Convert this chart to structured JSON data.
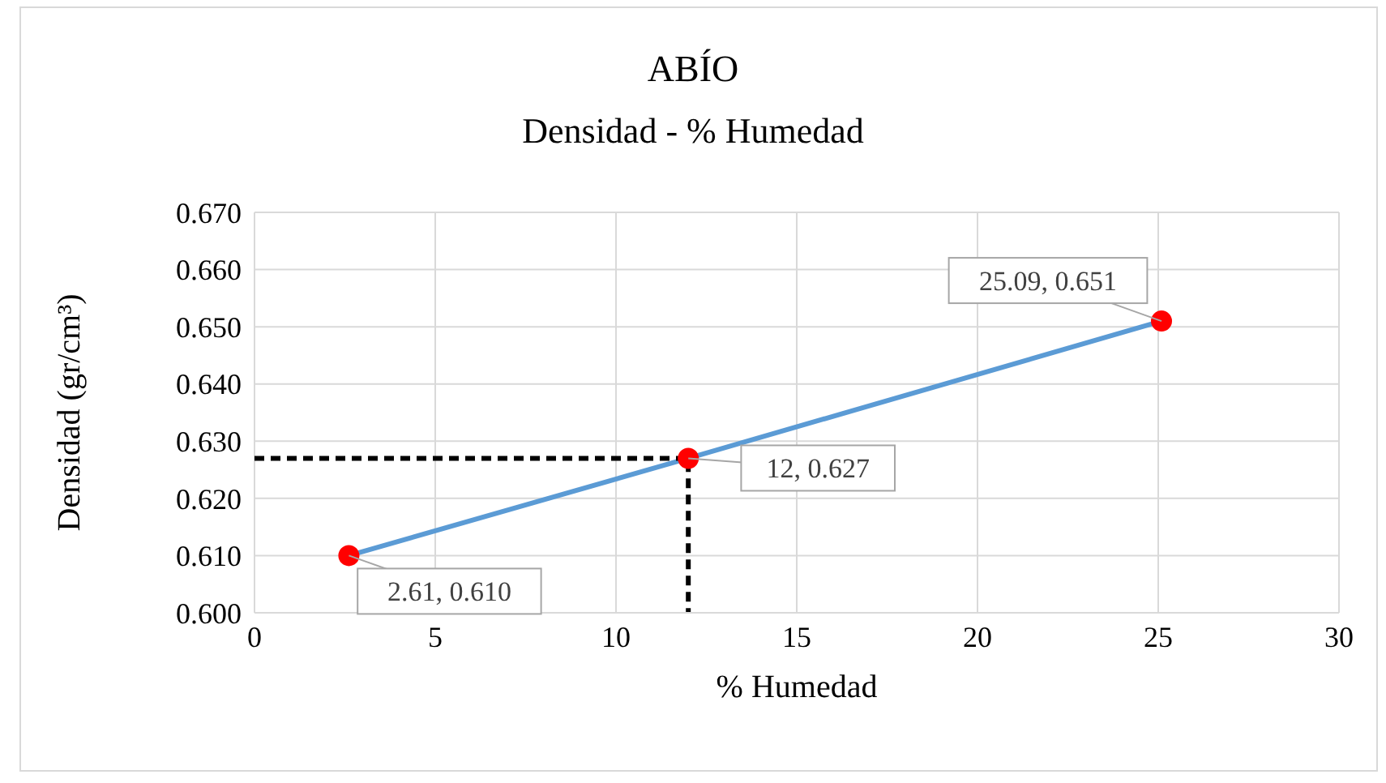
{
  "chart_data": {
    "type": "line",
    "title": "ABÍO",
    "subtitle": "Densidad - % Humedad",
    "xlabel": "% Humedad",
    "ylabel": "Densidad (gr/cm³)",
    "xlim": [
      0,
      30
    ],
    "xticks": [
      0,
      5,
      10,
      15,
      20,
      25,
      30
    ],
    "ylim": [
      0.6,
      0.67
    ],
    "yticks": [
      {
        "value": 0.6,
        "label": "0.600"
      },
      {
        "value": 0.61,
        "label": "0.610"
      },
      {
        "value": 0.62,
        "label": "0.620"
      },
      {
        "value": 0.63,
        "label": "0.630"
      },
      {
        "value": 0.64,
        "label": "0.640"
      },
      {
        "value": 0.65,
        "label": "0.650"
      },
      {
        "value": 0.66,
        "label": "0.660"
      },
      {
        "value": 0.67,
        "label": "0.670"
      }
    ],
    "grid": true,
    "legend": false,
    "series": [
      {
        "color": "#5b9bd5",
        "marker": "circle",
        "line_style": "solid",
        "x": [
          2.61,
          12,
          25.09
        ],
        "values": [
          0.61,
          0.627,
          0.651
        ]
      },
      {
        "color": "#000000",
        "marker": "none",
        "line_style": "dashed",
        "x": [
          0,
          12,
          12
        ],
        "values": [
          0.627,
          0.627,
          0.6
        ]
      }
    ],
    "annotations": [
      {
        "text": "2.61, 0.610",
        "x": 2.61,
        "y": 0.61
      },
      {
        "text": "12, 0.627",
        "x": 12,
        "y": 0.627
      },
      {
        "text": "25.09, 0.651",
        "x": 25.09,
        "y": 0.651
      }
    ]
  }
}
